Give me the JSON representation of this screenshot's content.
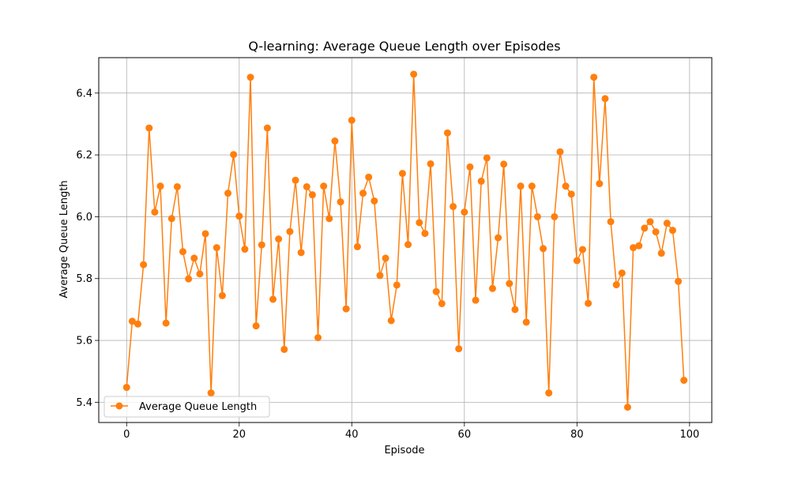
{
  "chart_data": {
    "type": "line",
    "title": "Q-learning: Average Queue Length over Episodes",
    "xlabel": "Episode",
    "ylabel": "Average Queue Length",
    "xlim": [
      -4.95,
      103.95
    ],
    "ylim": [
      5.3345,
      6.5145
    ],
    "xticks": [
      0,
      20,
      40,
      60,
      80,
      100
    ],
    "yticks": [
      5.4,
      5.6,
      5.8,
      6.0,
      6.2,
      6.4
    ],
    "xtick_labels": [
      "0",
      "20",
      "40",
      "60",
      "80",
      "100"
    ],
    "ytick_labels": [
      "5.4",
      "5.6",
      "5.8",
      "6.0",
      "6.2",
      "6.4"
    ],
    "grid": true,
    "legend_position": "lower-left",
    "series": [
      {
        "name": "Average Queue Length",
        "color": "#ff7f0e",
        "marker": "circle",
        "x": [
          0,
          1,
          2,
          3,
          4,
          5,
          6,
          7,
          8,
          9,
          10,
          11,
          12,
          13,
          14,
          15,
          16,
          17,
          18,
          19,
          20,
          21,
          22,
          23,
          24,
          25,
          26,
          27,
          28,
          29,
          30,
          31,
          32,
          33,
          34,
          35,
          36,
          37,
          38,
          39,
          40,
          41,
          42,
          43,
          44,
          45,
          46,
          47,
          48,
          49,
          50,
          51,
          52,
          53,
          54,
          55,
          56,
          57,
          58,
          59,
          60,
          61,
          62,
          63,
          64,
          65,
          66,
          67,
          68,
          69,
          70,
          71,
          72,
          73,
          74,
          75,
          76,
          77,
          78,
          79,
          80,
          81,
          82,
          83,
          84,
          85,
          86,
          87,
          88,
          89,
          90,
          91,
          92,
          93,
          94,
          95,
          96,
          97,
          98,
          99
        ],
        "values": [
          5.448,
          5.662,
          5.653,
          5.845,
          6.287,
          6.015,
          6.099,
          5.656,
          5.994,
          6.097,
          5.887,
          5.799,
          5.866,
          5.815,
          5.945,
          5.43,
          5.9,
          5.745,
          6.076,
          6.201,
          6.002,
          5.895,
          6.451,
          5.647,
          5.909,
          6.287,
          5.733,
          5.928,
          5.571,
          5.952,
          6.118,
          5.884,
          6.097,
          6.071,
          5.609,
          6.099,
          5.994,
          6.245,
          6.048,
          5.702,
          6.312,
          5.903,
          6.076,
          6.128,
          6.051,
          5.81,
          5.866,
          5.664,
          5.779,
          6.14,
          5.91,
          6.461,
          5.981,
          5.946,
          6.171,
          5.758,
          5.719,
          6.271,
          6.033,
          5.573,
          6.015,
          6.161,
          5.73,
          6.115,
          6.19,
          5.768,
          5.932,
          6.17,
          5.784,
          5.7,
          6.099,
          5.659,
          6.099,
          6.0,
          5.897,
          5.43,
          6.0,
          6.21,
          6.099,
          6.073,
          5.858,
          5.894,
          5.72,
          6.451,
          6.107,
          6.382,
          5.984,
          5.78,
          5.818,
          5.384,
          5.9,
          5.906,
          5.963,
          5.984,
          5.951,
          5.882,
          5.979,
          5.956,
          5.791,
          5.471
        ]
      }
    ]
  }
}
